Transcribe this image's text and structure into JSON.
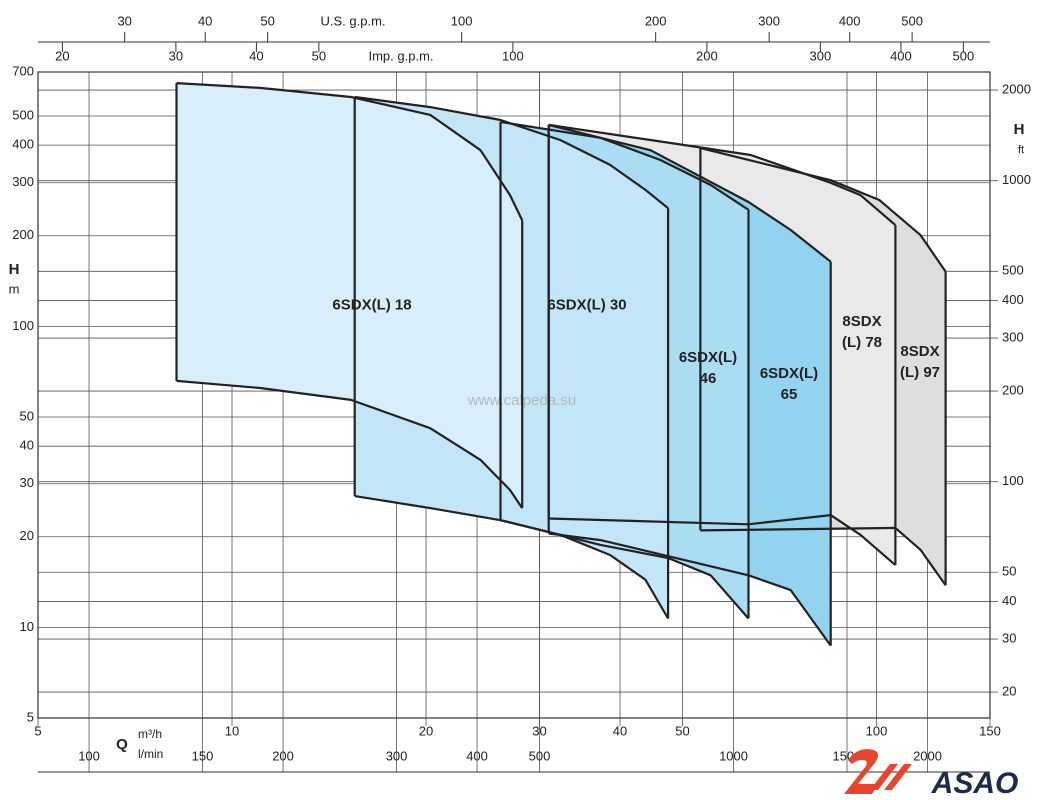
{
  "chart_data": {
    "type": "area-range",
    "log_x": true,
    "log_y": true,
    "grid": true,
    "xlabel": "Q",
    "xunit": "m³/h",
    "ylabel": "H",
    "yunit": "m",
    "y2label": "H",
    "y2unit": "ft",
    "xlim": [
      5,
      150
    ],
    "xticks": [
      5,
      10,
      20,
      30,
      40,
      50,
      100,
      150
    ],
    "ylim": [
      5,
      700
    ],
    "yticks": [
      5,
      10,
      20,
      30,
      40,
      50,
      100,
      200,
      300,
      400,
      500,
      700
    ],
    "y2lim": [
      16.4,
      2296.6
    ],
    "y2ticks": [
      20,
      30,
      40,
      50,
      100,
      200,
      300,
      400,
      500,
      1000,
      2000
    ],
    "x_lmin": {
      "label": "l/min",
      "lim": [
        83.33,
        2500
      ],
      "ticks": [
        100,
        150,
        200,
        300,
        400,
        500,
        1000,
        1500,
        2000
      ]
    },
    "x_usgpm": {
      "label": "U.S. g.p.m.",
      "lim": [
        22.01,
        660.4
      ],
      "ticks": [
        30,
        40,
        50,
        100,
        200,
        300,
        400,
        500
      ]
    },
    "x_impgpm": {
      "label": "Imp. g.p.m.",
      "lim": [
        18.33,
        549.9
      ],
      "ticks": [
        20,
        30,
        40,
        50,
        100,
        200,
        300,
        400,
        500
      ]
    },
    "series": [
      {
        "name": "6SDX(L) 18",
        "color": "#d8effb",
        "x_upper": [
          8.2,
          11.05,
          15.3,
          20.3,
          24.3,
          27.0,
          28.2
        ],
        "upper": [
          643,
          620,
          578,
          504,
          385,
          273,
          225
        ],
        "x_lower": [
          8.2,
          11.05,
          15.3,
          20.3,
          24.3,
          27.0,
          28.2
        ],
        "lower": [
          65.9,
          62.4,
          57,
          45.9,
          36,
          28.6,
          24.9
        ]
      },
      {
        "name": "6SDX(L) 30",
        "color": "#c2e6f7",
        "x_upper": [
          15.5,
          20.3,
          26.1,
          32.3,
          38.6,
          43.8,
          47.5
        ],
        "upper": [
          578,
          535,
          485,
          416,
          344,
          284,
          247
        ],
        "x_lower": [
          15.5,
          20.3,
          26.1,
          32.3,
          38.6,
          43.8,
          47.5
        ],
        "lower": [
          27.3,
          24.9,
          22.7,
          20.3,
          17.4,
          14.4,
          10.7
        ]
      },
      {
        "name": "6SDX(L) 46",
        "color": "#aadcf4",
        "x_upper": [
          26.1,
          37.3,
          46.2,
          55.3,
          63.3
        ],
        "upper": [
          478,
          423,
          357,
          295,
          244
        ],
        "x_lower": [
          26.1,
          37.3,
          47.5,
          55.3,
          63.3
        ],
        "lower": [
          22.7,
          18.8,
          17.0,
          14.9,
          10.7
        ]
      },
      {
        "name": "6SDX(L) 65",
        "color": "#92d3f0",
        "x_upper": [
          31.0,
          44.6,
          63.3,
          73.6,
          84.9
        ],
        "upper": [
          467,
          385,
          259,
          209,
          164
        ],
        "x_lower": [
          31.0,
          37.3,
          63.3,
          73.6,
          84.9
        ],
        "lower": [
          20.5,
          19.5,
          14.9,
          13.3,
          8.7
        ]
      },
      {
        "name": "8SDX (L) 78",
        "color": "#e9e9e9",
        "x_upper": [
          31.0,
          44.6,
          63.8,
          84.9,
          94.4,
          107
        ],
        "upper": [
          467,
          416,
          371,
          300,
          273,
          217
        ],
        "x_lower": [
          31.0,
          63.3,
          84.9,
          94.4,
          107
        ],
        "lower": [
          23,
          22,
          23.6,
          20.3,
          16.1
        ]
      },
      {
        "name": "8SDX (L) 97",
        "color": "#dedede",
        "x_upper": [
          53.3,
          84.9,
          101,
          117,
          128
        ],
        "upper": [
          391,
          306,
          263,
          201,
          152
        ],
        "x_lower": [
          53.3,
          107,
          117,
          128
        ],
        "lower": [
          21,
          21.4,
          18.1,
          13.8
        ]
      }
    ],
    "watermark": "www.calpeda.su"
  },
  "logo": "ASAO"
}
